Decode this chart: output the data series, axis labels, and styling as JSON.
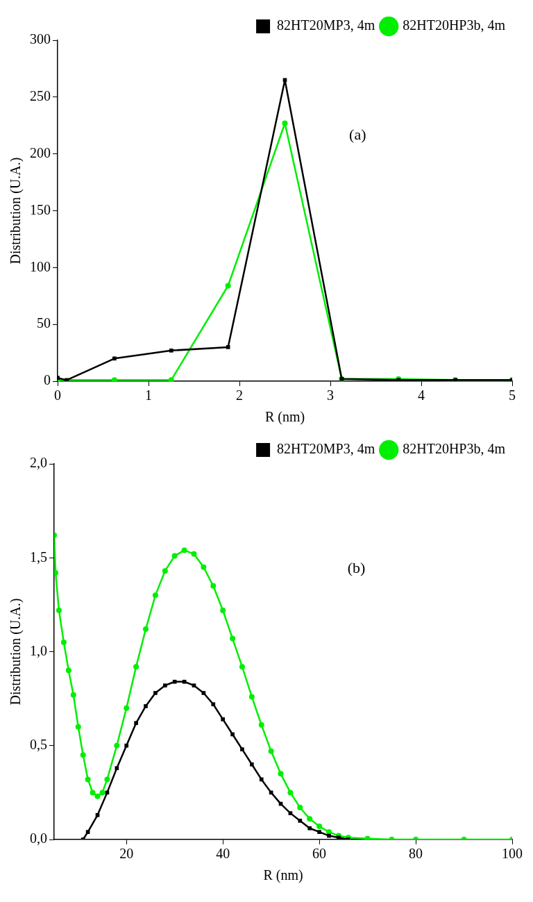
{
  "chart_data": [
    {
      "type": "line",
      "xlabel": "R (nm)",
      "ylabel": "Distribution (U.A.)",
      "annotations": [
        "(a)"
      ],
      "xlim": [
        0,
        5
      ],
      "xticks": [
        0,
        1,
        2,
        3,
        4,
        5
      ],
      "ylim": [
        0,
        300
      ],
      "yticks": [
        0,
        50,
        100,
        150,
        200,
        250,
        300
      ],
      "legend": "top right",
      "grid": false,
      "series": [
        {
          "name": "82HT20MP3, 4m",
          "color": "#000000",
          "marker": "square",
          "x": [
            0,
            0.1,
            0.625,
            1.25,
            1.875,
            2.5,
            3.125,
            3.75,
            4.375,
            5
          ],
          "values": [
            3,
            1,
            20,
            27,
            30,
            265,
            2,
            1,
            1,
            1
          ]
        },
        {
          "name": "82HT20HP3b, 4m",
          "color": "#00ee00",
          "marker": "circle",
          "x": [
            0,
            0.625,
            1.25,
            1.875,
            2.5,
            3.125,
            3.75,
            4.375,
            5
          ],
          "values": [
            1,
            1,
            1,
            84,
            227,
            2,
            2,
            1,
            1
          ]
        }
      ]
    },
    {
      "type": "line",
      "xlabel": "R (nm)",
      "ylabel": "Distribution (U.A.)",
      "annotations": [
        "(b)"
      ],
      "xlim": [
        5,
        100
      ],
      "xticks": [
        20,
        40,
        60,
        80,
        100
      ],
      "ylim": [
        0,
        2
      ],
      "yticks": [
        {
          "value": 0,
          "label": "0,0"
        },
        {
          "value": 0.5,
          "label": "0,5"
        },
        {
          "value": 1,
          "label": "1,0"
        },
        {
          "value": 1.5,
          "label": "1,5"
        },
        {
          "value": 2,
          "label": "2,0"
        }
      ],
      "legend": "top right",
      "grid": false,
      "series": [
        {
          "name": "82HT20MP3, 4m",
          "color": "#000000",
          "marker": "square",
          "x": [
            11,
            12,
            14,
            16,
            18,
            20,
            22,
            24,
            26,
            28,
            30,
            32,
            34,
            36,
            38,
            40,
            42,
            44,
            46,
            48,
            50,
            52,
            54,
            56,
            58,
            60,
            62,
            64,
            66
          ],
          "values": [
            0,
            0.04,
            0.13,
            0.25,
            0.38,
            0.5,
            0.62,
            0.71,
            0.78,
            0.82,
            0.84,
            0.84,
            0.82,
            0.78,
            0.72,
            0.64,
            0.56,
            0.48,
            0.4,
            0.32,
            0.25,
            0.19,
            0.14,
            0.1,
            0.06,
            0.04,
            0.02,
            0.01,
            0
          ]
        },
        {
          "name": "82HT20HP3b, 4m",
          "color": "#00ee00",
          "marker": "circle",
          "x": [
            5,
            5.3,
            6,
            7,
            8,
            9,
            10,
            11,
            12,
            13,
            14,
            15,
            16,
            18,
            20,
            22,
            24,
            26,
            28,
            30,
            32,
            34,
            36,
            38,
            40,
            42,
            44,
            46,
            48,
            50,
            52,
            54,
            56,
            58,
            60,
            62,
            64,
            66,
            70,
            75,
            80,
            90,
            100
          ],
          "values": [
            1.62,
            1.42,
            1.22,
            1.05,
            0.9,
            0.77,
            0.6,
            0.45,
            0.32,
            0.25,
            0.23,
            0.25,
            0.32,
            0.5,
            0.7,
            0.92,
            1.12,
            1.3,
            1.43,
            1.51,
            1.54,
            1.52,
            1.45,
            1.35,
            1.22,
            1.07,
            0.92,
            0.76,
            0.61,
            0.47,
            0.35,
            0.25,
            0.17,
            0.11,
            0.07,
            0.04,
            0.02,
            0.01,
            0.005,
            0,
            0,
            0,
            0
          ]
        }
      ]
    }
  ]
}
